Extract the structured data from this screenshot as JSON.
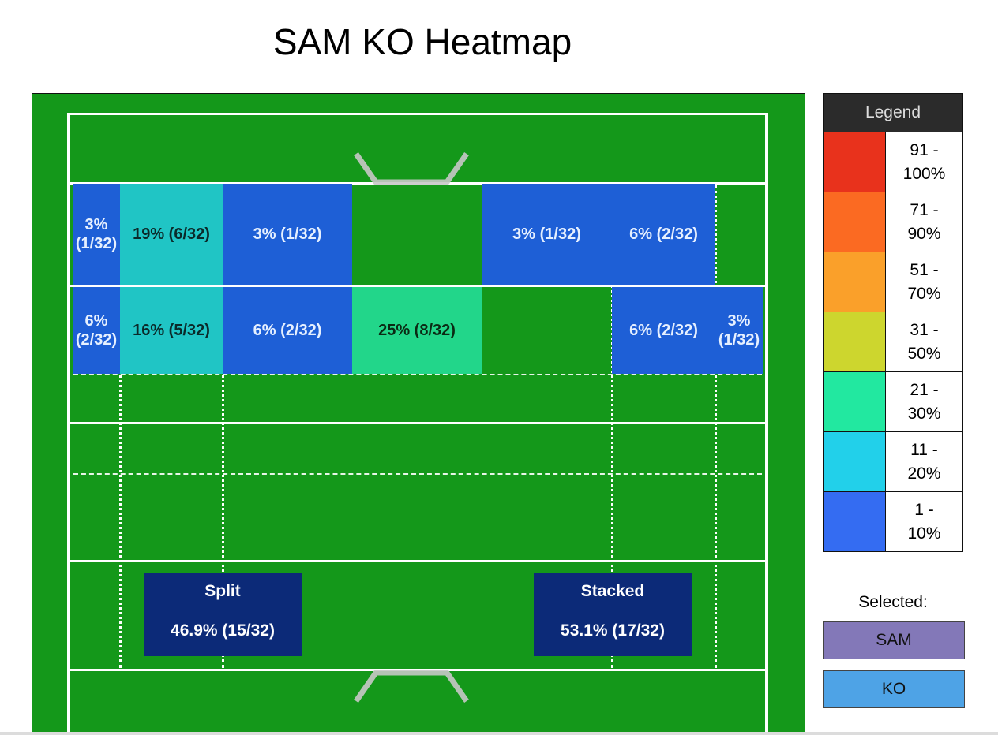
{
  "title": "SAM KO Heatmap",
  "chart_data": {
    "type": "heatmap",
    "title": "SAM KO Heatmap",
    "total": 32,
    "zones": [
      {
        "row": 1,
        "col": 1,
        "label": "3% (1/32)",
        "percent": 3,
        "count": 1,
        "color": "#1e5fd6"
      },
      {
        "row": 1,
        "col": 2,
        "label": "19% (6/32)",
        "percent": 19,
        "count": 6,
        "color": "#20c5c5"
      },
      {
        "row": 1,
        "col": 3,
        "label": "3% (1/32)",
        "percent": 3,
        "count": 1,
        "color": "#1e5fd6"
      },
      {
        "row": 1,
        "col": 5,
        "label": "3% (1/32)",
        "percent": 3,
        "count": 1,
        "color": "#1e5fd6"
      },
      {
        "row": 1,
        "col": 6,
        "label": "6% (2/32)",
        "percent": 6,
        "count": 2,
        "color": "#1e5fd6"
      },
      {
        "row": 2,
        "col": 1,
        "label": "6% (2/32)",
        "percent": 6,
        "count": 2,
        "color": "#1e5fd6"
      },
      {
        "row": 2,
        "col": 2,
        "label": "16% (5/32)",
        "percent": 16,
        "count": 5,
        "color": "#20c5c5"
      },
      {
        "row": 2,
        "col": 3,
        "label": "6% (2/32)",
        "percent": 6,
        "count": 2,
        "color": "#1e5fd6"
      },
      {
        "row": 2,
        "col": 4,
        "label": "25% (8/32)",
        "percent": 25,
        "count": 8,
        "color": "#22d68a"
      },
      {
        "row": 2,
        "col": 6,
        "label": "6% (2/32)",
        "percent": 6,
        "count": 2,
        "color": "#1e5fd6"
      },
      {
        "row": 2,
        "col": 7,
        "label": "3% (1/32)",
        "percent": 3,
        "count": 1,
        "color": "#1e5fd6"
      }
    ],
    "summary": [
      {
        "title": "Split",
        "value": "46.9% (15/32)",
        "percent": 46.9,
        "count": 15
      },
      {
        "title": "Stacked",
        "value": "53.1% (17/32)",
        "percent": 53.1,
        "count": 17
      }
    ]
  },
  "legend": {
    "header": "Legend",
    "items": [
      {
        "label": "91 - 100%",
        "color": "#e8321c"
      },
      {
        "label": "71 - 90%",
        "color": "#fb6a22"
      },
      {
        "label": "51 - 70%",
        "color": "#faa02a"
      },
      {
        "label": "31 - 50%",
        "color": "#cdd62e"
      },
      {
        "label": "21 - 30%",
        "color": "#22e8a0"
      },
      {
        "label": "11 - 20%",
        "color": "#22d0ea"
      },
      {
        "label": "1 - 10%",
        "color": "#346cf2"
      }
    ]
  },
  "selected": {
    "label": "Selected:",
    "items": [
      {
        "label": "SAM",
        "color": "#8378b8"
      },
      {
        "label": "KO",
        "color": "#4ea3e6"
      }
    ]
  }
}
